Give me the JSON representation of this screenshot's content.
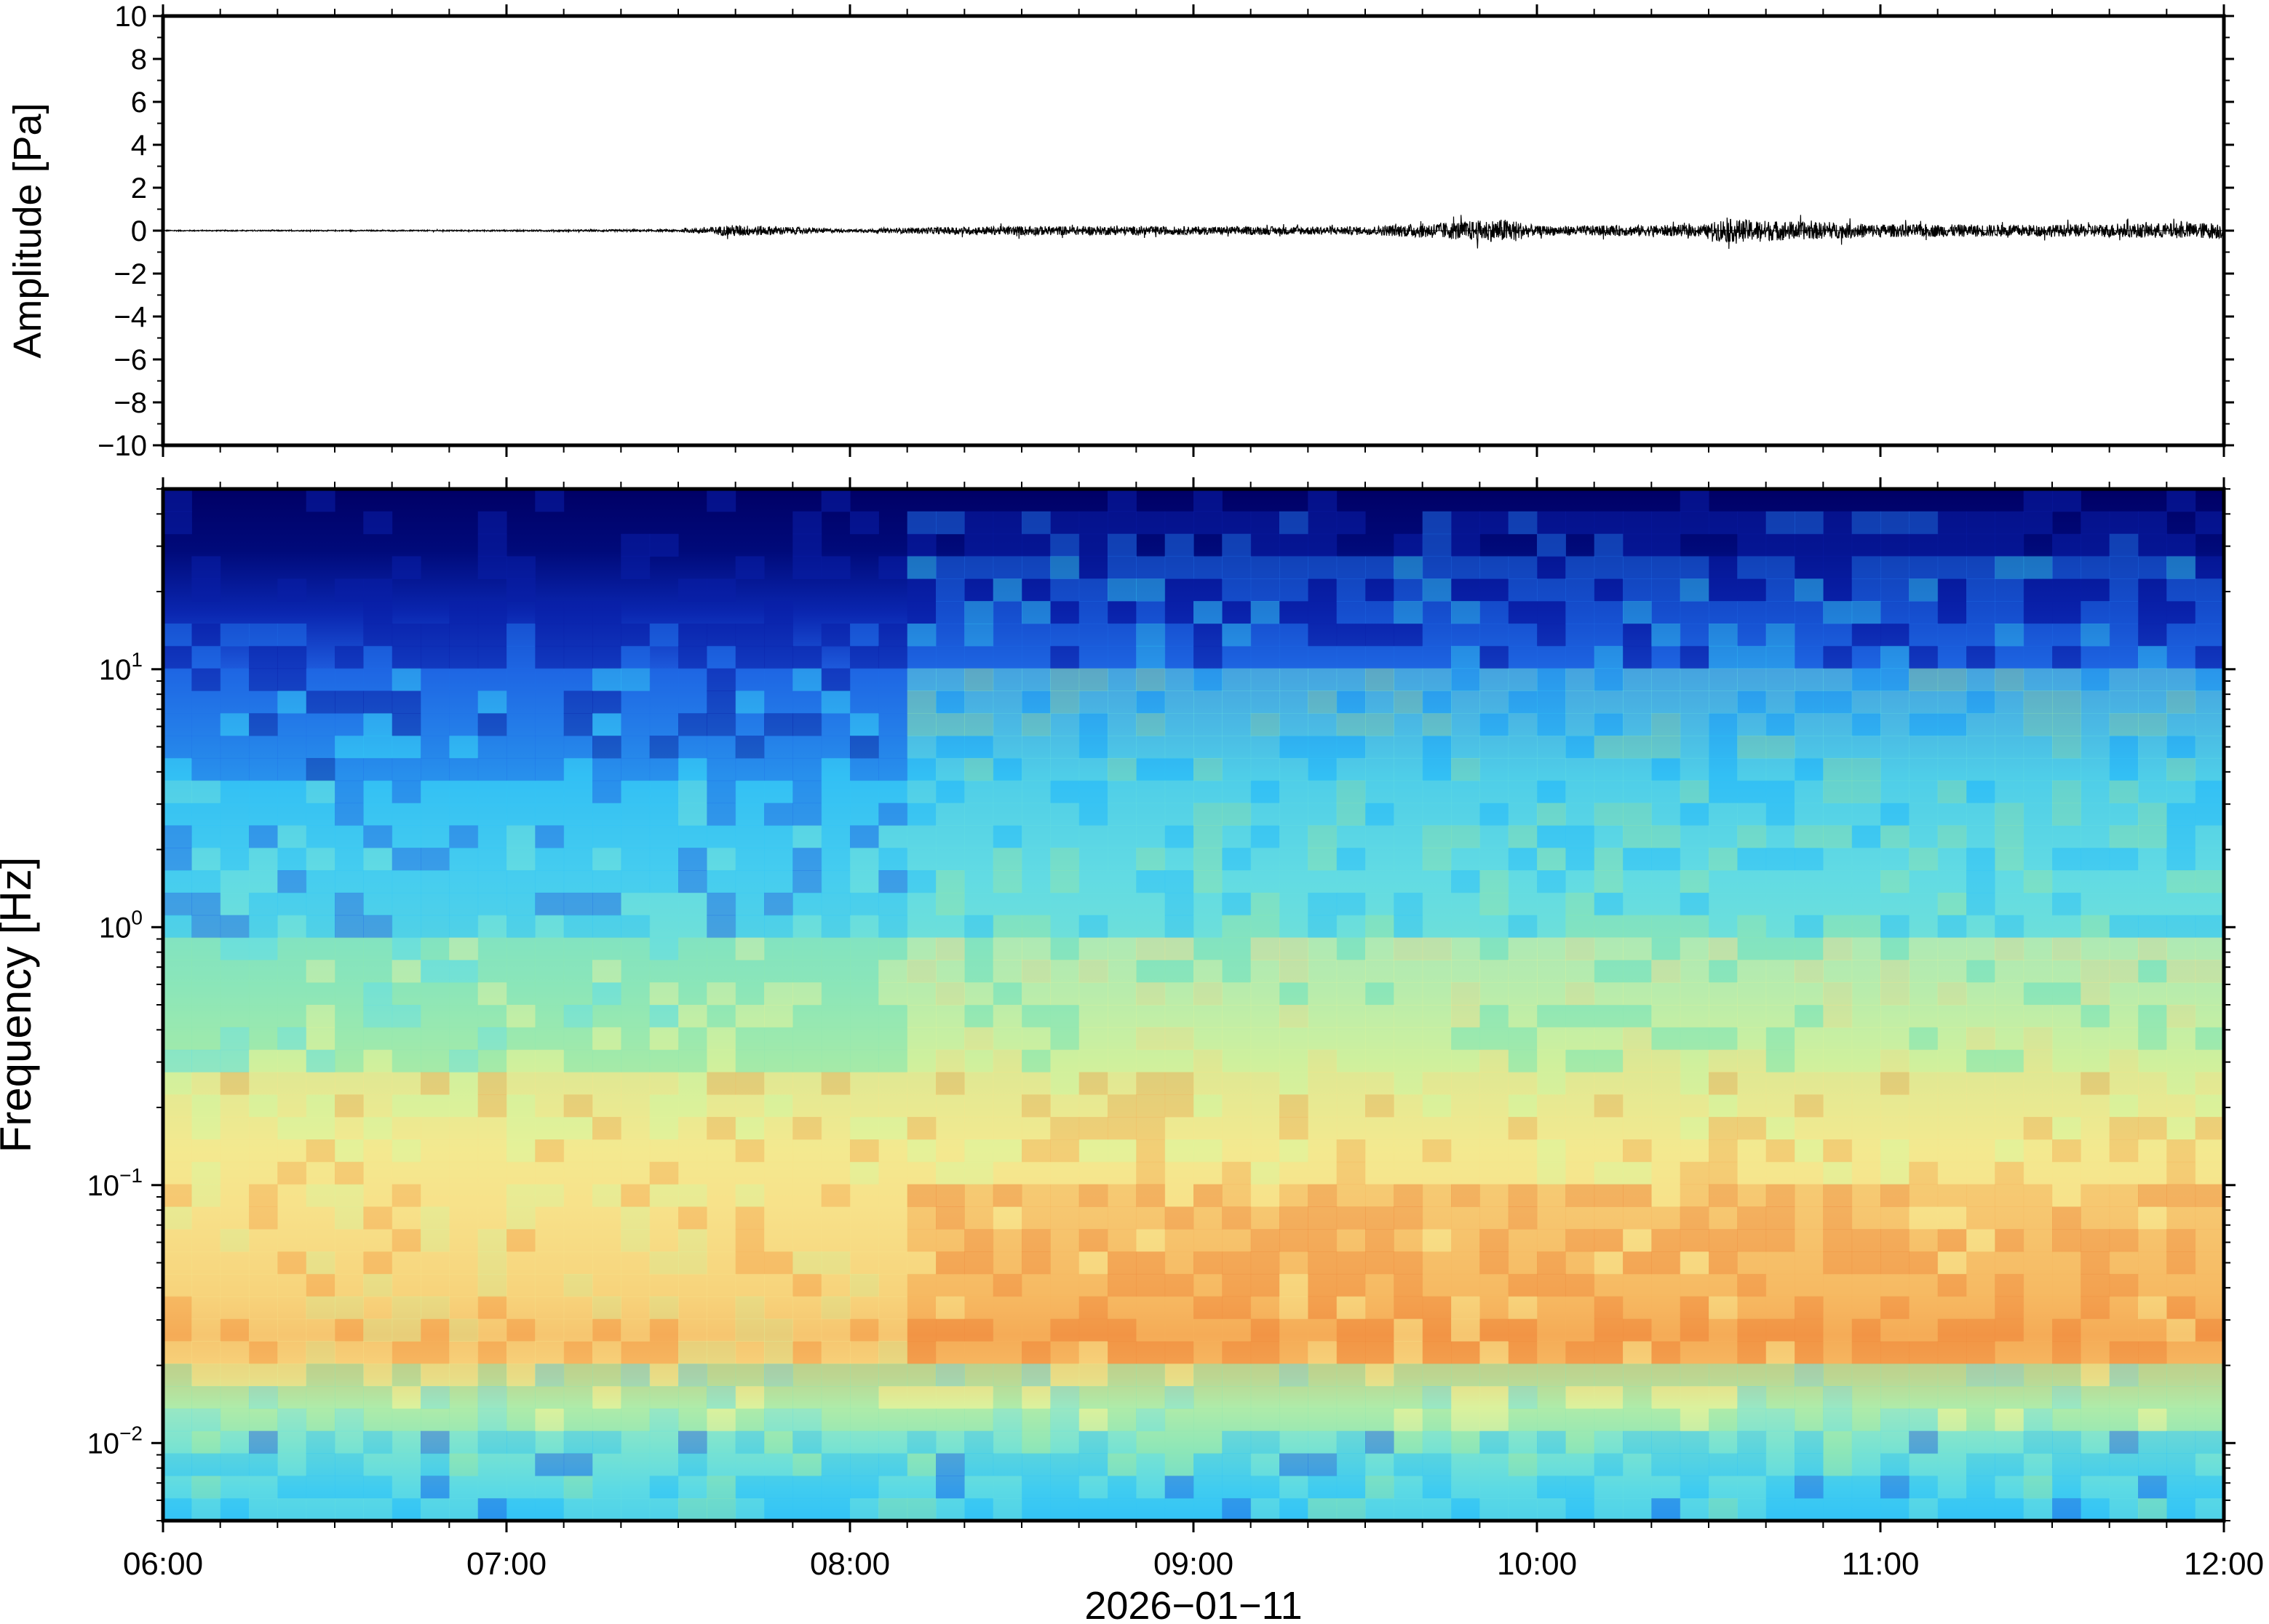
{
  "chart_data": [
    {
      "type": "line",
      "panel": "waveform",
      "ylabel": "Amplitude [Pa]",
      "ylim": [
        -10,
        10
      ],
      "yticks": [
        "10",
        "8",
        "6",
        "4",
        "2",
        "0",
        "−2",
        "−4",
        "−6",
        "−8",
        "−10"
      ],
      "xlim": [
        "06:00",
        "12:00"
      ],
      "series": [
        {
          "x": [
            "06:00",
            "06:30",
            "07:00",
            "07:30",
            "07:40",
            "08:00",
            "08:15",
            "08:30",
            "09:00",
            "09:30",
            "09:55",
            "10:00",
            "10:30",
            "10:32",
            "11:00",
            "11:30",
            "12:00"
          ],
          "envelope_half_width": [
            0.05,
            0.05,
            0.06,
            0.1,
            0.5,
            0.12,
            0.3,
            0.4,
            0.35,
            0.35,
            1.0,
            0.4,
            0.5,
            1.0,
            0.55,
            0.5,
            0.7
          ]
        }
      ]
    },
    {
      "type": "heatmap",
      "panel": "spectrogram",
      "ylabel": "Frequency [Hz]",
      "yscale": "log",
      "ylim": [
        0.005,
        50
      ],
      "yticks": [
        {
          "base": "10",
          "exp": "1",
          "value": 10
        },
        {
          "base": "10",
          "exp": "0",
          "value": 1
        },
        {
          "base": "10",
          "exp": "−1",
          "value": 0.1
        },
        {
          "base": "10",
          "exp": "−2",
          "value": 0.01
        }
      ],
      "xlabel": "2026−01−11",
      "xticks": [
        "06:00",
        "07:00",
        "08:00",
        "09:00",
        "10:00",
        "11:00",
        "12:00"
      ],
      "colormap": [
        "#000066",
        "#0a1fa8",
        "#1f6fe8",
        "#33c6f5",
        "#66e0e0",
        "#8ee8b0",
        "#dff29a",
        "#f7e48a",
        "#f5b45c",
        "#f08a3c"
      ],
      "noise_floor_top_hz_before_0810": 10,
      "noise_floor_top_hz_after_0810": 25,
      "max_energy_band_hz": [
        0.02,
        0.1
      ]
    }
  ]
}
